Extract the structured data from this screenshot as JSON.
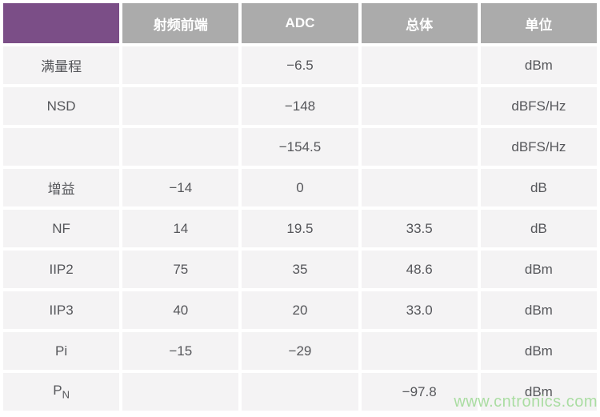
{
  "chart_data": {
    "type": "table",
    "title": "",
    "columns": [
      "",
      "射频前端",
      "ADC",
      "总体",
      "单位"
    ],
    "rows": [
      [
        "满量程",
        "",
        "−6.5",
        "",
        "dBm"
      ],
      [
        "NSD",
        "",
        "−148",
        "",
        "dBFS/Hz"
      ],
      [
        "",
        "",
        "−154.5",
        "",
        "dBFS/Hz"
      ],
      [
        "增益",
        "−14",
        "0",
        "",
        "dB"
      ],
      [
        "NF",
        "14",
        "19.5",
        "33.5",
        "dB"
      ],
      [
        "IIP2",
        "75",
        "35",
        "48.6",
        "dBm"
      ],
      [
        "IIP3",
        "40",
        "20",
        "33.0",
        "dBm"
      ],
      [
        "Pi",
        "−15",
        "−29",
        "",
        "dBm"
      ],
      [
        "PN",
        "",
        "",
        "−97.8",
        "dBm"
      ]
    ]
  },
  "labels": {
    "pn_main": "P",
    "pn_sub": "N"
  },
  "watermark": {
    "text": "www.cntronics.com",
    "color": "#aadda2"
  },
  "colors": {
    "header_purple": "#7b4e87",
    "header_gray": "#ababab",
    "row_background": "#f4f3f4",
    "body_text": "#55565a",
    "header_text": "#ffffff",
    "page_background": "#ffffff"
  }
}
